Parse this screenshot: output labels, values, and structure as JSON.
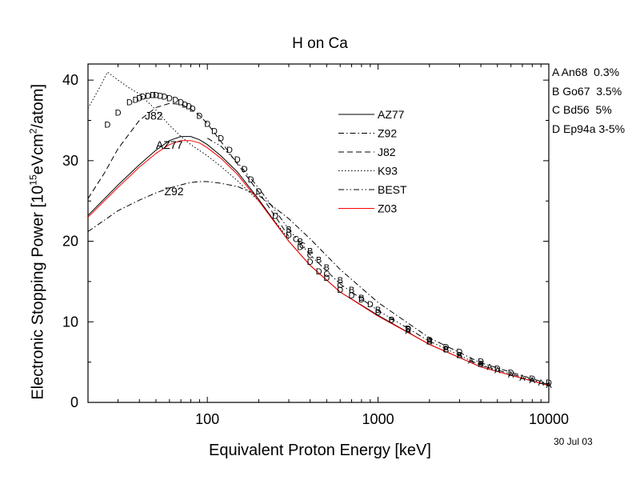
{
  "chart_data": {
    "type": "line",
    "title": "H on Ca",
    "xlabel": "Equivalent Proton Energy [keV]",
    "ylabel": {
      "prefix": "Electronic Stopping Power [10",
      "exp1": "15",
      "mid": "eVcm",
      "exp2": "2",
      "suffix": "/atom]"
    },
    "x_scale": "log",
    "xlim": [
      20,
      10000
    ],
    "ylim": [
      0,
      42
    ],
    "x_ticks": [
      {
        "value": 100,
        "label": "100"
      },
      {
        "value": 1000,
        "label": "1000"
      },
      {
        "value": 10000,
        "label": "10000"
      }
    ],
    "y_ticks": [
      0,
      10,
      20,
      30,
      40
    ],
    "grid": false,
    "legend_position": "top-right (inside plot)",
    "series": [
      {
        "name": "AZ77",
        "style": "solid",
        "color": "#000000",
        "x": [
          20,
          30,
          40,
          50,
          60,
          70,
          80,
          90,
          100,
          120,
          150,
          200,
          300,
          400,
          600,
          1000,
          2000,
          4000,
          10000
        ],
        "y": [
          23.2,
          27.0,
          29.5,
          31.3,
          32.5,
          33.0,
          33.0,
          32.6,
          32.0,
          30.6,
          28.6,
          25.2,
          20.0,
          17.0,
          13.7,
          10.8,
          7.2,
          4.4,
          2.1
        ]
      },
      {
        "name": "Z92",
        "style": "dashdot",
        "color": "#000000",
        "x": [
          20,
          30,
          40,
          50,
          60,
          70,
          80,
          90,
          100,
          120,
          150,
          200,
          300,
          400,
          600,
          1000,
          2000,
          4000,
          10000
        ],
        "y": [
          21.2,
          23.8,
          25.1,
          26.0,
          26.6,
          27.0,
          27.3,
          27.4,
          27.4,
          27.2,
          26.8,
          25.7,
          22.8,
          20.3,
          16.5,
          12.4,
          8.0,
          4.9,
          2.3
        ]
      },
      {
        "name": "J82",
        "style": "dash",
        "color": "#000000",
        "x": [
          20,
          25,
          30,
          40,
          50,
          60,
          70,
          80,
          90,
          100,
          120,
          150,
          200,
          300
        ],
        "y": [
          25.3,
          28.5,
          31.5,
          35.0,
          36.6,
          37.1,
          37.0,
          36.4,
          35.6,
          34.6,
          32.4,
          29.6,
          26.1,
          20.6
        ]
      },
      {
        "name": "K93",
        "style": "dot",
        "color": "#000000",
        "x": [
          20,
          24,
          26,
          30,
          35,
          40,
          50,
          60,
          70,
          80,
          100,
          120,
          150,
          200,
          300
        ],
        "y": [
          36.5,
          39.5,
          41.0,
          40.0,
          39.0,
          38.3,
          36.3,
          34.4,
          33.0,
          32.0,
          30.6,
          29.3,
          27.5,
          25.0,
          20.3
        ]
      },
      {
        "name": "BEST",
        "style": "dashdotdot",
        "color": "#000000",
        "x": [
          100,
          120,
          150,
          200,
          300,
          400,
          600,
          1000,
          2000,
          4000,
          10000
        ],
        "y": [
          32.8,
          31.8,
          29.8,
          26.6,
          21.5,
          18.3,
          14.7,
          11.4,
          7.6,
          4.6,
          2.2
        ]
      },
      {
        "name": "Z03",
        "style": "solid",
        "color": "#ff0000",
        "x": [
          20,
          30,
          40,
          50,
          60,
          70,
          80,
          90,
          100,
          120,
          150,
          200,
          300,
          400,
          600,
          1000,
          2000,
          4000,
          10000
        ],
        "y": [
          23.0,
          26.7,
          29.2,
          30.9,
          32.0,
          32.5,
          32.5,
          32.2,
          31.6,
          30.3,
          28.3,
          25.0,
          20.0,
          17.0,
          13.7,
          10.7,
          7.2,
          4.4,
          2.1
        ]
      }
    ],
    "curve_labels": [
      {
        "text": "J82",
        "x": 43,
        "y": 35.1
      },
      {
        "text": "AZ77",
        "x": 50,
        "y": 31.5
      },
      {
        "text": "Z92",
        "x": 56,
        "y": 25.7
      }
    ],
    "markers": [
      {
        "letter": "D",
        "points": [
          [
            26,
            34.5
          ],
          [
            30,
            36.0
          ],
          [
            35,
            37.3
          ],
          [
            38,
            37.6
          ],
          [
            40,
            37.8
          ],
          [
            42,
            38.0
          ],
          [
            45,
            38.1
          ],
          [
            48,
            38.2
          ],
          [
            50,
            38.2
          ],
          [
            53,
            38.1
          ],
          [
            56,
            38.0
          ],
          [
            60,
            37.8
          ],
          [
            65,
            37.6
          ],
          [
            70,
            37.3
          ],
          [
            74,
            37.0
          ],
          [
            78,
            36.8
          ],
          [
            82,
            36.5
          ],
          [
            90,
            35.6
          ],
          [
            100,
            34.6
          ],
          [
            110,
            33.7
          ],
          [
            120,
            32.8
          ],
          [
            135,
            31.4
          ],
          [
            150,
            30.2
          ],
          [
            165,
            29.0
          ],
          [
            180,
            27.7
          ],
          [
            200,
            26.2
          ],
          [
            250,
            23.2
          ],
          [
            300,
            20.8
          ],
          [
            350,
            19.3
          ],
          [
            400,
            17.5
          ],
          [
            450,
            16.3
          ],
          [
            500,
            15.5
          ],
          [
            600,
            14.0
          ],
          [
            700,
            13.3
          ],
          [
            800,
            12.8
          ],
          [
            900,
            12.2
          ],
          [
            1000,
            11.2
          ],
          [
            1200,
            10.3
          ],
          [
            1500,
            9.2
          ],
          [
            2000,
            7.8
          ],
          [
            2500,
            6.9
          ],
          [
            3000,
            6.3
          ],
          [
            4000,
            5.1
          ],
          [
            5000,
            4.2
          ],
          [
            6000,
            3.7
          ],
          [
            8000,
            3.0
          ],
          [
            10000,
            2.5
          ]
        ]
      },
      {
        "letter": "B",
        "points": [
          [
            300,
            21.5
          ],
          [
            350,
            20.0
          ],
          [
            400,
            18.8
          ],
          [
            450,
            17.7
          ],
          [
            500,
            16.8
          ],
          [
            600,
            15.2
          ],
          [
            700,
            14.0
          ],
          [
            800,
            13.0
          ],
          [
            1000,
            11.5
          ],
          [
            1200,
            10.3
          ],
          [
            1500,
            9.1
          ],
          [
            2000,
            7.6
          ],
          [
            2500,
            6.6
          ],
          [
            3000,
            5.9
          ],
          [
            4000,
            4.8
          ]
        ]
      },
      {
        "letter": "C",
        "points": [
          [
            330,
            20.3
          ],
          [
            360,
            19.5
          ],
          [
            400,
            18.3
          ],
          [
            500,
            16.0
          ],
          [
            600,
            14.6
          ]
        ]
      },
      {
        "letter": "A",
        "points": [
          [
            1500,
            8.9
          ],
          [
            2000,
            7.6
          ],
          [
            2500,
            6.7
          ],
          [
            3000,
            5.9
          ],
          [
            3500,
            5.2
          ],
          [
            4000,
            4.8
          ],
          [
            4500,
            4.4
          ],
          [
            5000,
            4.0
          ],
          [
            6000,
            3.5
          ],
          [
            7000,
            3.1
          ],
          [
            8000,
            2.8
          ],
          [
            9000,
            2.5
          ],
          [
            10000,
            2.2
          ]
        ]
      }
    ]
  },
  "references": [
    "A An68  0.3%",
    "B Go67  3.5%",
    "C Bd56  5%",
    "D Ep94a 3-5%"
  ],
  "date": "30 Jul 03"
}
